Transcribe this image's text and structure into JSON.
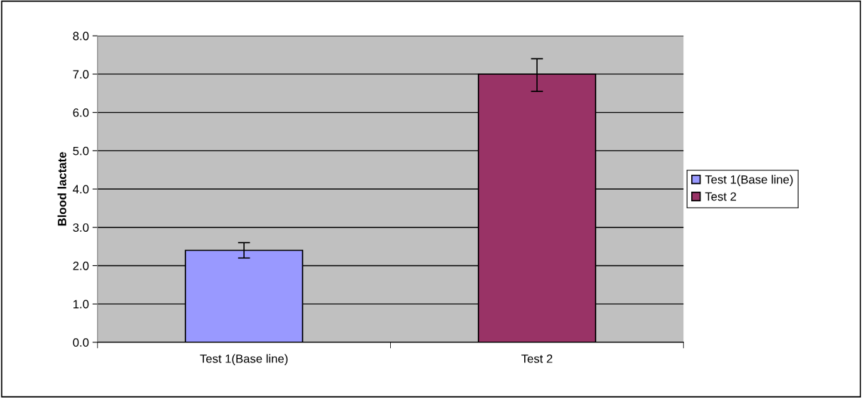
{
  "chart_data": {
    "type": "bar",
    "ylabel": "Blood lactate",
    "categories": [
      "Test 1(Base line)",
      "Test 2"
    ],
    "series": [
      {
        "name": "Test 1(Base line)",
        "color": "#9999ff",
        "values": [
          2.4,
          null
        ],
        "errors": [
          [
            2.2,
            2.6
          ],
          null
        ]
      },
      {
        "name": "Test 2",
        "color": "#993366",
        "values": [
          null,
          7.0
        ],
        "errors": [
          null,
          [
            6.55,
            7.4
          ]
        ]
      }
    ],
    "ylim": [
      0,
      8
    ],
    "yticks": [
      {
        "value": 0,
        "label": "0.0"
      },
      {
        "value": 1,
        "label": "1.0"
      },
      {
        "value": 2,
        "label": "2.0"
      },
      {
        "value": 3,
        "label": "3.0"
      },
      {
        "value": 4,
        "label": "4.0"
      },
      {
        "value": 5,
        "label": "5.0"
      },
      {
        "value": 6,
        "label": "6.0"
      },
      {
        "value": 7,
        "label": "7.0"
      },
      {
        "value": 8,
        "label": "8.0"
      }
    ],
    "grid": "y",
    "legend": "right"
  }
}
